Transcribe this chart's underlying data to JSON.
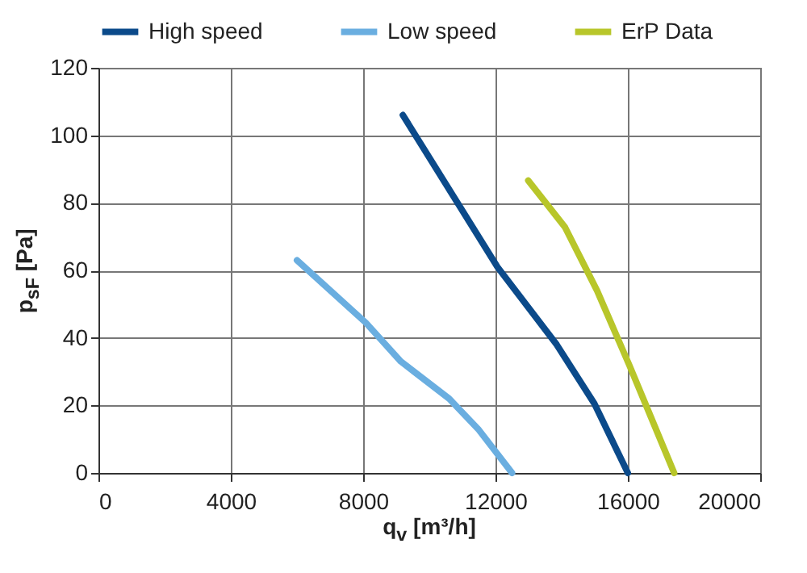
{
  "chart_data": {
    "type": "line",
    "xlabel": "q$_{v}$ [m³/h]",
    "ylabel": "p$_{sF}$ [Pa]",
    "xlim": [
      0,
      20000
    ],
    "xticks": [
      0,
      4000,
      8000,
      12000,
      16000,
      20000
    ],
    "ylim": [
      0,
      120
    ],
    "yticks": [
      0,
      20,
      40,
      60,
      80,
      100,
      120
    ],
    "grid": true,
    "legend": "top",
    "marker": "none",
    "line_style": "solid",
    "series": [
      {
        "name": "High speed",
        "color": "#0b4a8a",
        "x": [
          9200,
          12060,
          13850,
          14990,
          16000
        ],
        "values": [
          106,
          61,
          38,
          20.5,
          0
        ]
      },
      {
        "name": "Low speed",
        "color": "#6aaee0",
        "x": [
          6000,
          8080,
          9140,
          10600,
          11500,
          12500
        ],
        "values": [
          63,
          44.5,
          33,
          22,
          12.7,
          0
        ]
      },
      {
        "name": "ErP Data",
        "color": "#b8c62a",
        "x": [
          12990,
          14100,
          15070,
          16050,
          17400
        ],
        "values": [
          86.6,
          72.8,
          54,
          31.8,
          0
        ]
      }
    ]
  }
}
